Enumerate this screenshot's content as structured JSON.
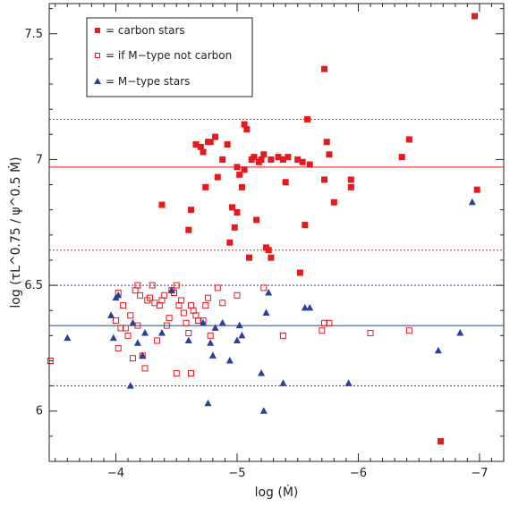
{
  "chart_data": {
    "type": "scatter",
    "xlabel": "log (Ṁ)",
    "ylabel": "log (τL^0.75 / ψ^0.5 Ṁ)",
    "xlim": [
      -3.45,
      -7.2
    ],
    "ylim": [
      5.8,
      7.62
    ],
    "x_ticks": [
      -4,
      -5,
      -6,
      -7
    ],
    "y_ticks": [
      6,
      6.5,
      7,
      7.5
    ],
    "x_tick_labels": [
      "−4",
      "−5",
      "−6",
      "−7"
    ],
    "y_tick_labels": [
      "6",
      "6.5",
      "7",
      "7.5"
    ],
    "legend_position": "top-left",
    "colors": {
      "red": "#e8191c",
      "blue": "#2b3f96"
    },
    "series": [
      {
        "name": "= carbon stars",
        "marker": "filled-square",
        "color": "#e8191c",
        "points": [
          [
            -4.38,
            6.82
          ],
          [
            -4.6,
            6.72
          ],
          [
            -4.62,
            6.8
          ],
          [
            -4.66,
            7.06
          ],
          [
            -4.7,
            7.05
          ],
          [
            -4.72,
            7.03
          ],
          [
            -4.74,
            6.89
          ],
          [
            -4.76,
            7.07
          ],
          [
            -4.78,
            7.07
          ],
          [
            -4.82,
            7.09
          ],
          [
            -4.84,
            6.93
          ],
          [
            -4.88,
            7.0
          ],
          [
            -4.92,
            7.06
          ],
          [
            -4.94,
            6.67
          ],
          [
            -4.96,
            6.81
          ],
          [
            -4.98,
            6.73
          ],
          [
            -5.0,
            6.79
          ],
          [
            -5.0,
            6.97
          ],
          [
            -5.02,
            6.94
          ],
          [
            -5.04,
            6.89
          ],
          [
            -5.06,
            6.96
          ],
          [
            -5.06,
            7.14
          ],
          [
            -5.08,
            7.12
          ],
          [
            -5.1,
            6.61
          ],
          [
            -5.12,
            7.0
          ],
          [
            -5.14,
            7.01
          ],
          [
            -5.16,
            6.76
          ],
          [
            -5.18,
            6.99
          ],
          [
            -5.2,
            7.0
          ],
          [
            -5.22,
            7.02
          ],
          [
            -5.24,
            6.65
          ],
          [
            -5.26,
            6.64
          ],
          [
            -5.28,
            6.61
          ],
          [
            -5.28,
            7.0
          ],
          [
            -5.34,
            7.01
          ],
          [
            -5.38,
            7.0
          ],
          [
            -5.4,
            6.91
          ],
          [
            -5.42,
            7.01
          ],
          [
            -5.52,
            6.55
          ],
          [
            -5.5,
            7.0
          ],
          [
            -5.54,
            6.99
          ],
          [
            -5.56,
            6.74
          ],
          [
            -5.58,
            7.16
          ],
          [
            -5.6,
            6.98
          ],
          [
            -5.72,
            6.92
          ],
          [
            -5.72,
            7.36
          ],
          [
            -5.74,
            7.07
          ],
          [
            -5.76,
            7.02
          ],
          [
            -5.8,
            6.83
          ],
          [
            -5.94,
            6.92
          ],
          [
            -5.94,
            6.89
          ],
          [
            -6.36,
            7.01
          ],
          [
            -6.42,
            7.08
          ],
          [
            -6.68,
            5.88
          ],
          [
            -6.96,
            7.57
          ],
          [
            -6.98,
            6.88
          ]
        ]
      },
      {
        "name": "= if M−type not carbon",
        "marker": "open-square",
        "color": "#e8191c",
        "points": [
          [
            -3.46,
            6.2
          ],
          [
            -4.0,
            6.36
          ],
          [
            -4.02,
            6.25
          ],
          [
            -4.02,
            6.47
          ],
          [
            -4.04,
            6.33
          ],
          [
            -4.06,
            6.42
          ],
          [
            -4.08,
            6.33
          ],
          [
            -4.1,
            6.3
          ],
          [
            -4.12,
            6.38
          ],
          [
            -4.14,
            6.21
          ],
          [
            -4.16,
            6.48
          ],
          [
            -4.18,
            6.34
          ],
          [
            -4.18,
            6.5
          ],
          [
            -4.2,
            6.46
          ],
          [
            -4.22,
            6.22
          ],
          [
            -4.24,
            6.17
          ],
          [
            -4.26,
            6.44
          ],
          [
            -4.28,
            6.45
          ],
          [
            -4.3,
            6.5
          ],
          [
            -4.32,
            6.43
          ],
          [
            -4.34,
            6.28
          ],
          [
            -4.36,
            6.42
          ],
          [
            -4.38,
            6.44
          ],
          [
            -4.4,
            6.46
          ],
          [
            -4.42,
            6.34
          ],
          [
            -4.44,
            6.37
          ],
          [
            -4.46,
            6.48
          ],
          [
            -4.48,
            6.47
          ],
          [
            -4.5,
            6.15
          ],
          [
            -4.5,
            6.5
          ],
          [
            -4.52,
            6.42
          ],
          [
            -4.54,
            6.44
          ],
          [
            -4.56,
            6.39
          ],
          [
            -4.58,
            6.35
          ],
          [
            -4.6,
            6.31
          ],
          [
            -4.62,
            6.15
          ],
          [
            -4.62,
            6.42
          ],
          [
            -4.64,
            6.4
          ],
          [
            -4.66,
            6.38
          ],
          [
            -4.68,
            6.36
          ],
          [
            -4.72,
            6.36
          ],
          [
            -4.74,
            6.42
          ],
          [
            -4.76,
            6.45
          ],
          [
            -4.78,
            6.3
          ],
          [
            -4.84,
            6.49
          ],
          [
            -4.88,
            6.43
          ],
          [
            -5.0,
            6.46
          ],
          [
            -5.22,
            6.49
          ],
          [
            -5.38,
            6.3
          ],
          [
            -5.7,
            6.32
          ],
          [
            -5.72,
            6.35
          ],
          [
            -5.76,
            6.35
          ],
          [
            -6.1,
            6.31
          ],
          [
            -6.42,
            6.32
          ]
        ]
      },
      {
        "name": "= M−type stars",
        "marker": "filled-triangle",
        "color": "#2b3f96",
        "points": [
          [
            -3.6,
            6.29
          ],
          [
            -3.96,
            6.38
          ],
          [
            -3.98,
            6.29
          ],
          [
            -4.02,
            6.46
          ],
          [
            -4.0,
            6.45
          ],
          [
            -4.12,
            6.1
          ],
          [
            -4.14,
            6.35
          ],
          [
            -4.18,
            6.27
          ],
          [
            -4.22,
            6.22
          ],
          [
            -4.24,
            6.31
          ],
          [
            -4.38,
            6.31
          ],
          [
            -4.46,
            6.48
          ],
          [
            -4.6,
            6.28
          ],
          [
            -4.72,
            6.35
          ],
          [
            -4.76,
            6.03
          ],
          [
            -4.78,
            6.27
          ],
          [
            -4.8,
            6.22
          ],
          [
            -4.82,
            6.33
          ],
          [
            -4.88,
            6.35
          ],
          [
            -4.94,
            6.2
          ],
          [
            -5.0,
            6.28
          ],
          [
            -5.02,
            6.34
          ],
          [
            -5.04,
            6.3
          ],
          [
            -5.2,
            6.15
          ],
          [
            -5.22,
            6.0
          ],
          [
            -5.24,
            6.39
          ],
          [
            -5.26,
            6.47
          ],
          [
            -5.38,
            6.11
          ],
          [
            -5.56,
            6.41
          ],
          [
            -5.6,
            6.41
          ],
          [
            -5.92,
            6.11
          ],
          [
            -6.66,
            6.24
          ],
          [
            -6.84,
            6.31
          ],
          [
            -6.94,
            6.83
          ]
        ]
      }
    ],
    "reference_lines": [
      {
        "y": 7.16,
        "style": "dotted",
        "color": "#e8191c"
      },
      {
        "y": 6.97,
        "style": "solid",
        "color": "#e8191c"
      },
      {
        "y": 6.64,
        "style": "dotted",
        "color": "#e8191c"
      },
      {
        "y": 6.5,
        "style": "dotted",
        "color": "#2b3f96"
      },
      {
        "y": 6.34,
        "style": "solid",
        "color": "#2b3f96"
      },
      {
        "y": 6.1,
        "style": "dotted",
        "color": "#2b3f96"
      }
    ]
  }
}
